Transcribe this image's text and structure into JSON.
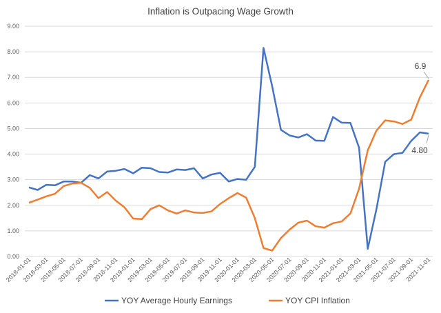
{
  "chart_data": {
    "type": "line",
    "title": "Inflation is Outpacing Wage Growth",
    "xlabel": "",
    "ylabel": "",
    "ylim": [
      0,
      9
    ],
    "yticks": [
      "0.00",
      "1.00",
      "2.00",
      "3.00",
      "4.00",
      "5.00",
      "6.00",
      "7.00",
      "8.00",
      "9.00"
    ],
    "grid": true,
    "legend_position": "bottom",
    "x": [
      "2018-01-01",
      "2018-02-01",
      "2018-03-01",
      "2018-04-01",
      "2018-05-01",
      "2018-06-01",
      "2018-07-01",
      "2018-08-01",
      "2018-09-01",
      "2018-10-01",
      "2018-11-01",
      "2018-12-01",
      "2019-01-01",
      "2019-02-01",
      "2019-03-01",
      "2019-04-01",
      "2019-05-01",
      "2019-06-01",
      "2019-07-01",
      "2019-08-01",
      "2019-09-01",
      "2019-10-01",
      "2019-11-01",
      "2019-12-01",
      "2020-01-01",
      "2020-02-01",
      "2020-03-01",
      "2020-04-01",
      "2020-05-01",
      "2020-06-01",
      "2020-07-01",
      "2020-08-01",
      "2020-09-01",
      "2020-10-01",
      "2020-11-01",
      "2020-12-01",
      "2021-01-01",
      "2021-02-01",
      "2021-03-01",
      "2021-04-01",
      "2021-05-01",
      "2021-06-01",
      "2021-07-01",
      "2021-08-01",
      "2021-09-01",
      "2021-10-01",
      "2021-11-01"
    ],
    "series": [
      {
        "name": "YOY Average Hourly Earnings",
        "color": "#4472C4",
        "end_label": "4.80",
        "values": [
          2.7,
          2.6,
          2.8,
          2.78,
          2.93,
          2.93,
          2.88,
          3.18,
          3.05,
          3.32,
          3.35,
          3.42,
          3.25,
          3.47,
          3.45,
          3.3,
          3.28,
          3.4,
          3.38,
          3.45,
          3.05,
          3.2,
          3.27,
          2.93,
          3.03,
          3.0,
          3.5,
          8.15,
          6.65,
          4.95,
          4.73,
          4.65,
          4.78,
          4.53,
          4.52,
          5.45,
          5.23,
          5.22,
          4.25,
          0.3,
          1.85,
          3.7,
          4.0,
          4.05,
          4.52,
          4.85,
          4.8
        ]
      },
      {
        "name": "YOY CPI Inflation",
        "color": "#ED7D31",
        "end_label": "6.9",
        "values": [
          2.1,
          2.22,
          2.35,
          2.45,
          2.75,
          2.85,
          2.88,
          2.68,
          2.28,
          2.52,
          2.18,
          1.92,
          1.48,
          1.46,
          1.85,
          2.0,
          1.8,
          1.68,
          1.8,
          1.72,
          1.7,
          1.76,
          2.05,
          2.28,
          2.48,
          2.3,
          1.5,
          0.33,
          0.23,
          0.72,
          1.05,
          1.32,
          1.4,
          1.18,
          1.13,
          1.3,
          1.37,
          1.68,
          2.65,
          4.15,
          4.92,
          5.32,
          5.28,
          5.18,
          5.35,
          6.22,
          6.9
        ]
      }
    ]
  }
}
